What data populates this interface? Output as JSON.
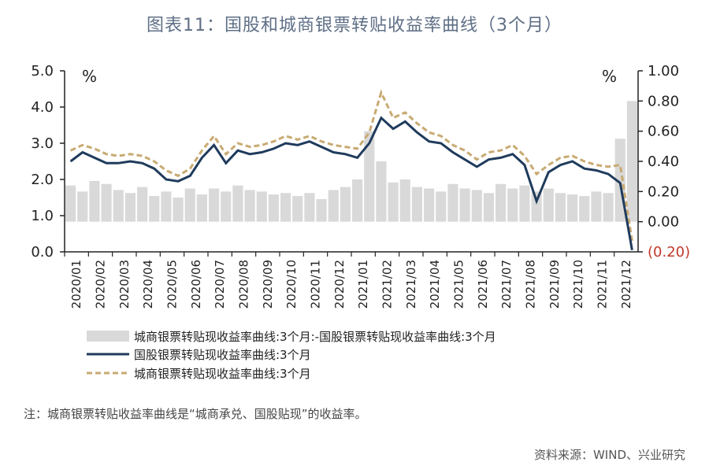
{
  "title": "图表11：国股和城商银票转贴收益率曲线（3个月）",
  "note": "注：城商银票转贴收益率曲线是“城商承兑、国股贴现”的收益率。",
  "source": "资料来源：WIND、兴业研究",
  "chart_data": {
    "type": "line",
    "y_left": {
      "unit": "%",
      "ylim": [
        0,
        5
      ],
      "ticks": [
        "0.0",
        "1.0",
        "2.0",
        "3.0",
        "4.0",
        "5.0"
      ]
    },
    "y_right": {
      "unit": "%",
      "ylim": [
        -0.2,
        1.0
      ],
      "ticks": [
        "(0.20)",
        "0.00",
        "0.20",
        "0.40",
        "0.60",
        "0.80",
        "1.00"
      ]
    },
    "x_ticks": [
      "2020/01",
      "2020/02",
      "2020/03",
      "2020/04",
      "2020/05",
      "2020/06",
      "2020/07",
      "2020/08",
      "2020/09",
      "2020/10",
      "2020/11",
      "2020/12",
      "2021/01",
      "2021/02",
      "2021/03",
      "2021/04",
      "2021/05",
      "2021/06",
      "2021/07",
      "2021/08",
      "2021/09",
      "2021/10",
      "2021/11",
      "2021/12"
    ],
    "grid": false,
    "legend_position": "bottom",
    "colors": {
      "spread": "#d9d9d9",
      "guogu": "#1f3b5c",
      "chengshang": "#c8aa72"
    },
    "series": [
      {
        "name": "城商银票转贴现收益率曲线:3个月:-国股银票转贴现收益率曲线:3个月",
        "axis": "right",
        "style": "bar",
        "x": [
          "2020/01",
          "2020/01.5",
          "2020/02",
          "2020/02.5",
          "2020/03",
          "2020/03.5",
          "2020/04",
          "2020/04.5",
          "2020/05",
          "2020/05.5",
          "2020/06",
          "2020/06.5",
          "2020/07",
          "2020/07.5",
          "2020/08",
          "2020/08.5",
          "2020/09",
          "2020/09.5",
          "2020/10",
          "2020/10.5",
          "2020/11",
          "2020/11.5",
          "2020/12",
          "2020/12.5",
          "2021/01",
          "2021/01.5",
          "2021/02",
          "2021/02.5",
          "2021/03",
          "2021/03.5",
          "2021/04",
          "2021/04.5",
          "2021/05",
          "2021/05.5",
          "2021/06",
          "2021/06.5",
          "2021/07",
          "2021/07.5",
          "2021/08",
          "2021/08.5",
          "2021/09",
          "2021/09.5",
          "2021/10",
          "2021/10.5",
          "2021/11",
          "2021/11.5",
          "2021/12",
          "2021/12.5"
        ],
        "values": [
          0.24,
          0.2,
          0.27,
          0.25,
          0.21,
          0.19,
          0.23,
          0.17,
          0.2,
          0.16,
          0.22,
          0.18,
          0.22,
          0.2,
          0.24,
          0.21,
          0.2,
          0.18,
          0.19,
          0.17,
          0.19,
          0.15,
          0.21,
          0.23,
          0.28,
          0.6,
          0.4,
          0.26,
          0.28,
          0.23,
          0.22,
          0.2,
          0.25,
          0.22,
          0.21,
          0.19,
          0.25,
          0.22,
          0.24,
          0.2,
          0.22,
          0.19,
          0.18,
          0.17,
          0.2,
          0.19,
          0.55,
          0.8
        ]
      },
      {
        "name": "国股银票转贴现收益率曲线:3个月",
        "axis": "left",
        "style": "solid",
        "x": [
          "2020/01",
          "2020/01.5",
          "2020/02",
          "2020/02.5",
          "2020/03",
          "2020/03.5",
          "2020/04",
          "2020/04.5",
          "2020/05",
          "2020/05.5",
          "2020/06",
          "2020/06.5",
          "2020/07",
          "2020/07.5",
          "2020/08",
          "2020/08.5",
          "2020/09",
          "2020/09.5",
          "2020/10",
          "2020/10.5",
          "2020/11",
          "2020/11.5",
          "2020/12",
          "2020/12.5",
          "2021/01",
          "2021/01.5",
          "2021/02",
          "2021/02.5",
          "2021/03",
          "2021/03.5",
          "2021/04",
          "2021/04.5",
          "2021/05",
          "2021/05.5",
          "2021/06",
          "2021/06.5",
          "2021/07",
          "2021/07.5",
          "2021/08",
          "2021/08.5",
          "2021/09",
          "2021/09.5",
          "2021/10",
          "2021/10.5",
          "2021/11",
          "2021/11.5",
          "2021/12",
          "2021/12.5"
        ],
        "values": [
          2.5,
          2.75,
          2.6,
          2.45,
          2.45,
          2.5,
          2.45,
          2.3,
          2.0,
          1.95,
          2.1,
          2.6,
          2.95,
          2.45,
          2.8,
          2.7,
          2.75,
          2.85,
          3.0,
          2.95,
          3.05,
          2.9,
          2.75,
          2.7,
          2.6,
          3.0,
          3.7,
          3.4,
          3.6,
          3.3,
          3.05,
          3.0,
          2.75,
          2.55,
          2.35,
          2.55,
          2.6,
          2.7,
          2.4,
          1.4,
          2.2,
          2.4,
          2.5,
          2.3,
          2.25,
          2.15,
          1.9,
          0.05
        ]
      },
      {
        "name": "城商银票转贴现收益率曲线:3个月",
        "axis": "left",
        "style": "dashed",
        "x": [
          "2020/01",
          "2020/01.5",
          "2020/02",
          "2020/02.5",
          "2020/03",
          "2020/03.5",
          "2020/04",
          "2020/04.5",
          "2020/05",
          "2020/05.5",
          "2020/06",
          "2020/06.5",
          "2020/07",
          "2020/07.5",
          "2020/08",
          "2020/08.5",
          "2020/09",
          "2020/09.5",
          "2020/10",
          "2020/10.5",
          "2020/11",
          "2020/11.5",
          "2020/12",
          "2020/12.5",
          "2021/01",
          "2021/01.5",
          "2021/02",
          "2021/02.5",
          "2021/03",
          "2021/03.5",
          "2021/04",
          "2021/04.5",
          "2021/05",
          "2021/05.5",
          "2021/06",
          "2021/06.5",
          "2021/07",
          "2021/07.5",
          "2021/08",
          "2021/08.5",
          "2021/09",
          "2021/09.5",
          "2021/10",
          "2021/10.5",
          "2021/11",
          "2021/11.5",
          "2021/12",
          "2021/12.5"
        ],
        "values": [
          2.8,
          2.95,
          2.85,
          2.7,
          2.65,
          2.7,
          2.65,
          2.5,
          2.25,
          2.1,
          2.3,
          2.8,
          3.2,
          2.7,
          3.0,
          2.9,
          2.95,
          3.05,
          3.2,
          3.1,
          3.2,
          3.05,
          2.95,
          2.9,
          2.85,
          3.3,
          4.4,
          3.7,
          3.85,
          3.55,
          3.3,
          3.2,
          2.95,
          2.8,
          2.55,
          2.75,
          2.8,
          2.95,
          2.65,
          2.15,
          2.4,
          2.6,
          2.65,
          2.5,
          2.4,
          2.35,
          2.4,
          0.3
        ]
      }
    ],
    "legend": [
      "城商银票转贴现收益率曲线:3个月:-国股银票转贴现收益率曲线:3个月",
      "国股银票转贴现收益率曲线:3个月",
      "城商银票转贴现收益率曲线:3个月"
    ]
  }
}
